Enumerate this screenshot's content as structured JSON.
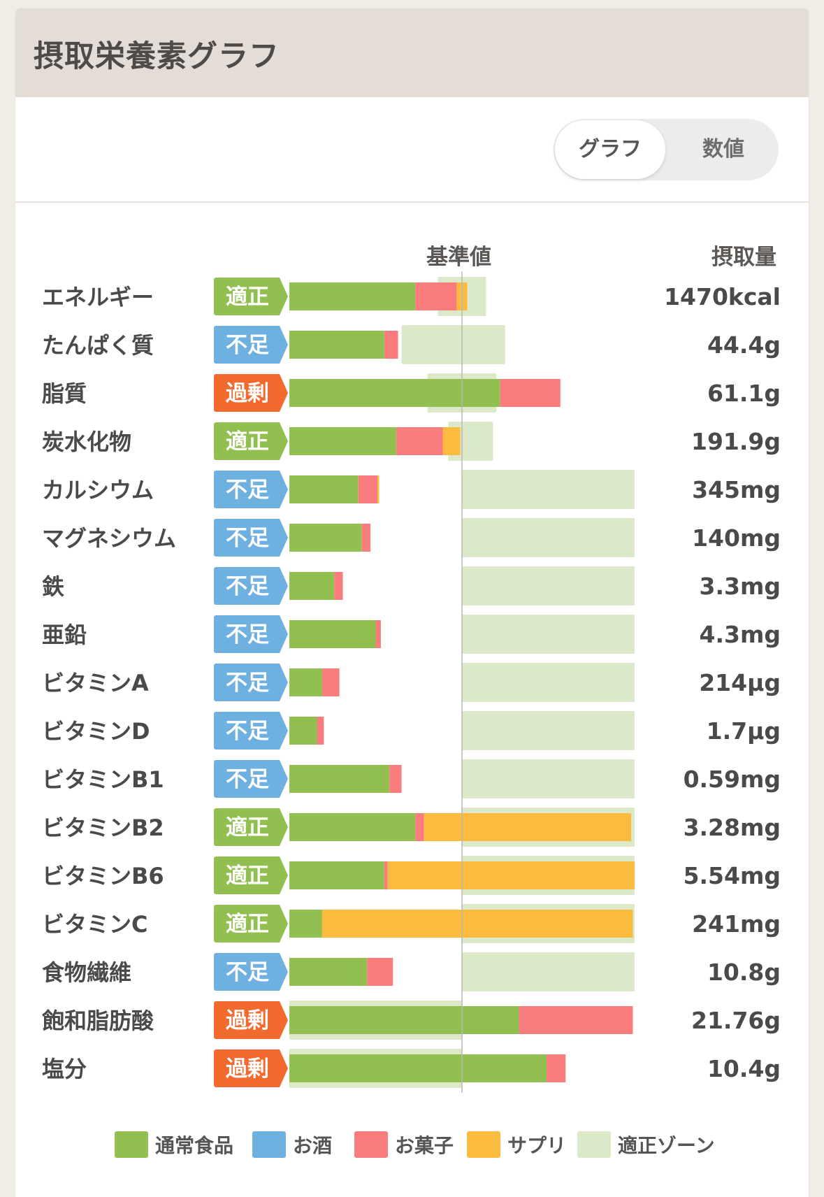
{
  "header": {
    "title": "摂取栄養素グラフ"
  },
  "toggle": {
    "graph_label": "グラフ",
    "value_label": "数値"
  },
  "columns": {
    "reference": "基準値",
    "intake": "摂取量"
  },
  "colors": {
    "food": "#92c050",
    "alcohol": "#6eb0e0",
    "snack": "#f97d7d",
    "supplement": "#fbbb3e",
    "zone": "#dce9c9",
    "badge_ok": "#92c050",
    "badge_low": "#6eb0e0",
    "badge_over": "#f26a2e"
  },
  "chart_data": {
    "type": "bar",
    "orientation": "horizontal",
    "stacked": true,
    "unit": "% of reference value",
    "reference_value": 100,
    "xlim": [
      0,
      200
    ],
    "categories": [
      "エネルギー",
      "たんぱく質",
      "脂質",
      "炭水化物",
      "カルシウム",
      "マグネシウム",
      "鉄",
      "亜鉛",
      "ビタミンA",
      "ビタミンD",
      "ビタミンB1",
      "ビタミンB2",
      "ビタミンB6",
      "ビタミンC",
      "食物繊維",
      "飽和脂肪酸",
      "塩分"
    ],
    "series": [
      {
        "name": "通常食品",
        "values": [
          73,
          55,
          122,
          62,
          40,
          42,
          26,
          50,
          19,
          16,
          58,
          73,
          55,
          19,
          45,
          133,
          149
        ]
      },
      {
        "name": "お酒",
        "values": [
          0,
          0,
          0,
          0,
          0,
          0,
          0,
          0,
          0,
          0,
          0,
          0,
          0,
          0,
          0,
          0,
          0
        ]
      },
      {
        "name": "お菓子",
        "values": [
          24,
          8,
          35,
          27,
          11,
          5,
          5,
          3,
          10,
          4,
          7,
          5,
          2,
          0,
          15,
          66,
          11
        ]
      },
      {
        "name": "サプリ",
        "values": [
          6,
          0,
          0,
          10,
          1,
          0,
          0,
          0,
          0,
          0,
          0,
          120,
          143,
          180,
          0,
          0,
          0
        ]
      }
    ],
    "zones": [
      [
        86,
        114
      ],
      [
        65,
        125
      ],
      [
        80,
        120
      ],
      [
        92,
        118
      ],
      [
        100,
        200
      ],
      [
        100,
        200
      ],
      [
        100,
        200
      ],
      [
        100,
        200
      ],
      [
        100,
        200
      ],
      [
        100,
        200
      ],
      [
        100,
        200
      ],
      [
        100,
        200
      ],
      [
        100,
        200
      ],
      [
        100,
        200
      ],
      [
        100,
        200
      ],
      [
        0,
        100
      ],
      [
        0,
        100
      ]
    ],
    "status": [
      "適正",
      "不足",
      "過剰",
      "適正",
      "不足",
      "不足",
      "不足",
      "不足",
      "不足",
      "不足",
      "不足",
      "適正",
      "適正",
      "適正",
      "不足",
      "過剰",
      "過剰"
    ],
    "intake": [
      "1470kcal",
      "44.4g",
      "61.1g",
      "191.9g",
      "345mg",
      "140mg",
      "3.3mg",
      "4.3mg",
      "214µg",
      "1.7µg",
      "0.59mg",
      "3.28mg",
      "5.54mg",
      "241mg",
      "10.8g",
      "21.76g",
      "10.4g"
    ],
    "legend": [
      "通常食品",
      "お酒",
      "お菓子",
      "サプリ",
      "適正ゾーン"
    ]
  }
}
